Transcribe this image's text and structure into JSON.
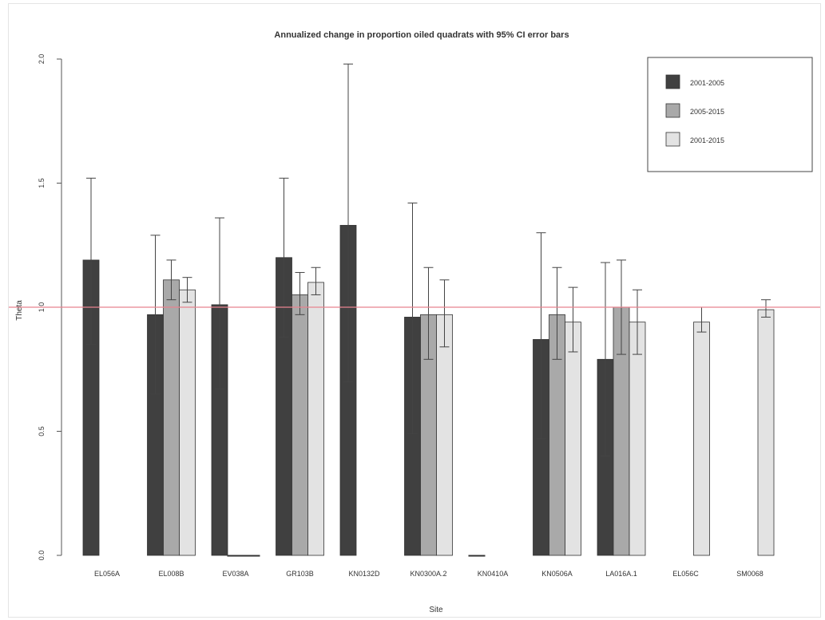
{
  "chart_data": {
    "type": "bar",
    "title": "Annualized change in proportion oiled quadrats with 95% CI error bars",
    "xlabel": "Site",
    "ylabel": "Theta",
    "ylim": [
      0,
      2.0
    ],
    "yticks": [
      0.0,
      0.5,
      1.0,
      1.5,
      2.0
    ],
    "yticklabels": [
      "0.0",
      "0.5",
      "1.0",
      "1.5",
      "2.0"
    ],
    "reference_line": {
      "y": 1.0,
      "color": "#e8838f"
    },
    "legend_position": "top-right",
    "grid": false,
    "categories": [
      "EL056A",
      "EL008B",
      "EV038A",
      "GR103B",
      "KN0132D",
      "KN0300A.2",
      "KN0410A",
      "KN0506A",
      "LA016A.1",
      "EL056C",
      "SM0068"
    ],
    "series": [
      {
        "name": "2001-2005",
        "color": "#404040",
        "values": [
          1.19,
          0.97,
          1.01,
          1.2,
          1.33,
          0.96,
          0.0,
          0.87,
          0.79,
          null,
          null
        ],
        "ci_lower": [
          0.85,
          0.65,
          0.67,
          0.88,
          0.7,
          0.49,
          null,
          0.47,
          0.4,
          null,
          null
        ],
        "ci_upper": [
          1.52,
          1.29,
          1.36,
          1.52,
          1.98,
          1.42,
          null,
          1.3,
          1.18,
          null,
          null
        ]
      },
      {
        "name": "2005-2015",
        "color": "#a9a9a9",
        "values": [
          null,
          1.11,
          0.0,
          1.05,
          null,
          0.97,
          null,
          0.97,
          1.0,
          null,
          null
        ],
        "ci_lower": [
          null,
          1.03,
          null,
          0.97,
          null,
          0.79,
          null,
          0.79,
          0.81,
          null,
          null
        ],
        "ci_upper": [
          null,
          1.19,
          null,
          1.14,
          null,
          1.16,
          null,
          1.16,
          1.19,
          null,
          null
        ]
      },
      {
        "name": "2001-2015",
        "color": "#e3e3e3",
        "values": [
          null,
          1.07,
          0.0,
          1.1,
          null,
          0.97,
          null,
          0.94,
          0.94,
          0.94,
          0.99
        ],
        "ci_lower": [
          null,
          1.02,
          null,
          1.05,
          null,
          0.84,
          null,
          0.82,
          0.81,
          0.9,
          0.96
        ],
        "ci_upper": [
          null,
          1.12,
          null,
          1.16,
          null,
          1.11,
          null,
          1.08,
          1.07,
          1.0,
          1.03
        ]
      }
    ]
  }
}
